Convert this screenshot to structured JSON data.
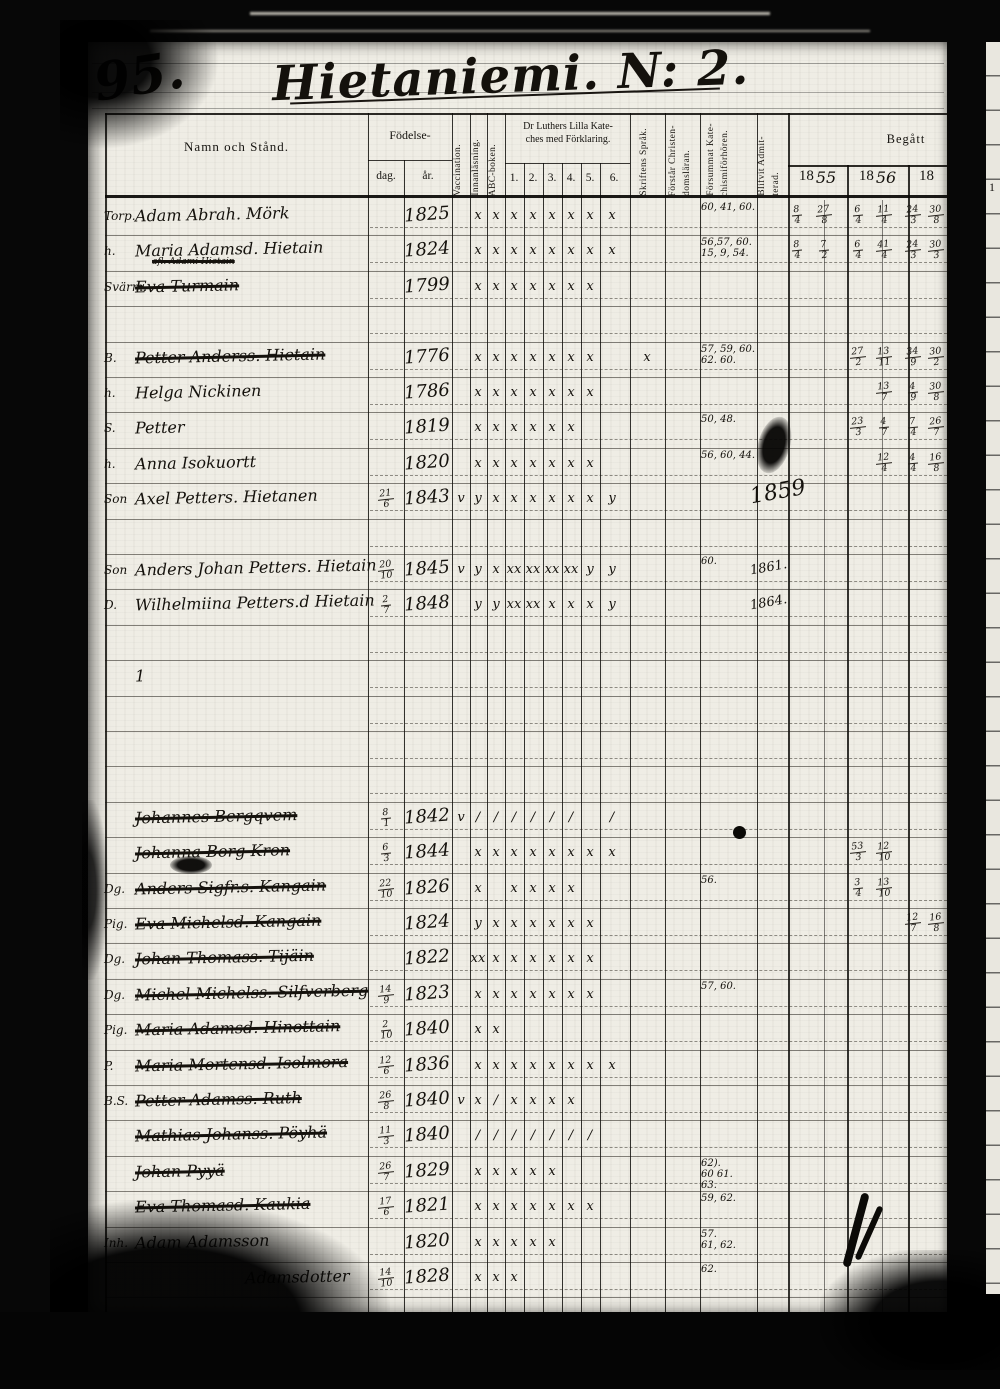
{
  "page": {
    "number": "95.",
    "title": "Hietaniemi. N: 2.",
    "edge_number": "1"
  },
  "header": {
    "name_label": "Namn och Stånd.",
    "birth": {
      "label": "Födelse-",
      "day": "dag.",
      "year": "år."
    },
    "katekes": {
      "line1": "Dr Luthers Lilla Kate-",
      "line2": "ches med Förklaring.",
      "cols": [
        "1.",
        "2.",
        "3.",
        "4.",
        "5.",
        "6."
      ]
    },
    "vertical_labels": [
      "Vaccination.",
      "Innanläsning.",
      "ABC-boken.",
      "Skriftens Språk.",
      "Förstår Christen-|domsläran.",
      "Försummat Kate-|chismiförhören.",
      "Blifvit Admit-|terad."
    ],
    "begatt_label": "Begått",
    "year_cells": [
      {
        "printed": "18",
        "written": "55"
      },
      {
        "printed": "18",
        "written": "56"
      },
      {
        "printed": "18",
        "written": ""
      }
    ]
  },
  "rows": [
    {
      "row": 0,
      "prefix": "Torp.",
      "name": "Adam Abrah. Mörk",
      "year": "1825",
      "marks": [
        "",
        "x",
        "x",
        "x",
        "x",
        "x",
        "x",
        "x",
        "x",
        ""
      ],
      "forsummat": "60, 41, 60.",
      "begatt": [
        "8/4",
        "27/8",
        "6/4",
        "11/4",
        "24/3",
        "30/8"
      ]
    },
    {
      "row": 1,
      "prefix": "h.",
      "name": "Maria Adamsd. Hietain",
      "note": "afl. Adami Hietain",
      "year": "1824",
      "marks": [
        "",
        "x",
        "x",
        "x",
        "x",
        "x",
        "x",
        "x",
        "x",
        ""
      ],
      "forsummat": "56,57, 60.\n15, 9, 54.",
      "begatt": [
        "8/4",
        "7/2",
        "6/4",
        "41/4",
        "24/3",
        "30/3"
      ]
    },
    {
      "row": 2,
      "prefix": "Svärm.",
      "name": "Eva Turmain",
      "struck": true,
      "year": "1799",
      "marks": [
        "",
        "x",
        "x",
        "x",
        "x",
        "x",
        "x",
        "x",
        "",
        ""
      ]
    },
    {
      "row": 4,
      "prefix": "B.",
      "name": "Petter Anderss. Hietain",
      "struck": true,
      "year": "1776",
      "marks": [
        "",
        "x",
        "x",
        "x",
        "x",
        "x",
        "x",
        "x",
        "",
        "x"
      ],
      "forsummat": "57, 59, 60.\n62. 60.",
      "begatt": [
        "",
        "",
        "27/2",
        "13/11",
        "34/9",
        "30/2"
      ]
    },
    {
      "row": 5,
      "prefix": "h.",
      "name": "Helga Nickinen",
      "year": "1786",
      "marks": [
        "",
        "x",
        "x",
        "x",
        "x",
        "x",
        "x",
        "x",
        "",
        ""
      ],
      "forsummat": "",
      "begatt": [
        "",
        "",
        "",
        "13/7",
        "4/9",
        "30/8"
      ]
    },
    {
      "row": 6,
      "prefix": "S.",
      "name": "Petter",
      "year": "1819",
      "marks": [
        "",
        "x",
        "x",
        "x",
        "x",
        "x",
        "x",
        "",
        "",
        ""
      ],
      "forsummat": "50, 48.",
      "begatt": [
        "",
        "",
        "23/3",
        "4/7",
        "7/4",
        "26/7"
      ]
    },
    {
      "row": 7,
      "prefix": "h.",
      "name": "Anna Isokuortt",
      "year": "1820",
      "marks": [
        "",
        "x",
        "x",
        "x",
        "x",
        "x",
        "x",
        "x",
        "",
        ""
      ],
      "forsummat": "56, 60, 44.",
      "begatt": [
        "",
        "",
        "",
        "12/4",
        "4/4",
        "16/8"
      ]
    },
    {
      "row": 8,
      "prefix": "Son",
      "name": "Axel Petters. Hietanen",
      "day": "21/6",
      "year": "1843",
      "marks": [
        "v",
        "y",
        "x",
        "x",
        "x",
        "x",
        "x",
        "x",
        "y",
        ""
      ],
      "admit": "1859"
    },
    {
      "row": 10,
      "prefix": "Son",
      "name": "Anders Johan Petters. Hietain",
      "day": "20/10",
      "year": "1845",
      "marks": [
        "v",
        "y",
        "x",
        "xx",
        "xx",
        "xx",
        "xx",
        "y",
        "y",
        ""
      ],
      "forsummat": "60.",
      "admit": "1861."
    },
    {
      "row": 11,
      "prefix": "D.",
      "name": "Wilhelmiina Petters.d Hietain",
      "day": "2/7",
      "year": "1848",
      "marks": [
        "",
        "y",
        "y",
        "xx",
        "xx",
        "x",
        "x",
        "x",
        "y",
        ""
      ],
      "admit": "1864."
    },
    {
      "row": 13,
      "name": "1"
    },
    {
      "row": 17,
      "name": "Johannes Bergqvem",
      "struck": true,
      "day": "8/1",
      "year": "1842",
      "marks": [
        "v",
        "/",
        "/",
        "/",
        "/",
        "/",
        "/",
        "",
        "/",
        ""
      ]
    },
    {
      "row": 18,
      "name": "Johanna Borg Kron",
      "struck": true,
      "day": "6/3",
      "year": "1844",
      "marks": [
        "",
        "x",
        "x",
        "x",
        "x",
        "x",
        "x",
        "x",
        "x",
        ""
      ],
      "begatt": [
        "",
        "",
        "53/3",
        "12/10",
        "",
        ""
      ]
    },
    {
      "row": 19,
      "prefix": "Dg.",
      "name": "Anders Sigfr.s. Kangain",
      "struck": true,
      "day": "22/10",
      "year": "1826",
      "marks": [
        "",
        "x",
        "",
        "x",
        "x",
        "x",
        "x",
        "",
        "",
        ""
      ],
      "forsummat": "56.",
      "begatt": [
        "",
        "",
        "3/4",
        "13/10",
        "",
        ""
      ]
    },
    {
      "row": 20,
      "prefix": "Pig.",
      "name": "Eva Michelsd. Kangain",
      "struck": true,
      "year": "1824",
      "marks": [
        "",
        "y",
        "x",
        "x",
        "x",
        "x",
        "x",
        "x",
        "",
        ""
      ],
      "begatt": [
        "",
        "",
        "",
        "",
        "12/7",
        "16/8"
      ]
    },
    {
      "row": 21,
      "prefix": "Dg.",
      "name": "Johan Thomass. Tijäin",
      "struck": true,
      "year": "1822",
      "marks": [
        "",
        "xx",
        "x",
        "x",
        "x",
        "x",
        "x",
        "x",
        "",
        ""
      ]
    },
    {
      "row": 22,
      "prefix": "Dg.",
      "name": "Michel Michelss. Silfverberg",
      "struck": true,
      "day": "14/9",
      "year": "1823",
      "marks": [
        "",
        "x",
        "x",
        "x",
        "x",
        "x",
        "x",
        "x",
        "",
        ""
      ],
      "forsummat": "57, 60."
    },
    {
      "row": 23,
      "prefix": "Pig.",
      "name": "Maria Adamsd. Hinottain",
      "struck": true,
      "day": "2/10",
      "year": "1840",
      "marks": [
        "",
        "x",
        "x",
        "",
        "",
        "",
        "",
        "",
        "",
        ""
      ]
    },
    {
      "row": 24,
      "prefix": "P.",
      "name": "Maria Mortensd. Isolmora",
      "struck": true,
      "day": "12/6",
      "year": "1836",
      "marks": [
        "",
        "x",
        "x",
        "x",
        "x",
        "x",
        "x",
        "x",
        "x",
        ""
      ]
    },
    {
      "row": 25,
      "prefix": "B.S.",
      "name": "Petter Adamss. Ruth",
      "struck": true,
      "day": "26/8",
      "year": "1840",
      "marks": [
        "v",
        "x",
        "/",
        "x",
        "x",
        "x",
        "x",
        "",
        "",
        ""
      ]
    },
    {
      "row": 26,
      "name": "Mathias Johanss. Pöyhä",
      "struck": true,
      "day": "11/3",
      "year": "1840",
      "marks": [
        "",
        "/",
        "/",
        "/",
        "/",
        "/",
        "/",
        "/",
        "",
        ""
      ]
    },
    {
      "row": 27,
      "name": "Johan Pyyä",
      "struck": true,
      "day": "26/7",
      "year": "1829",
      "marks": [
        "",
        "x",
        "x",
        "x",
        "x",
        "x",
        "",
        "",
        "",
        ""
      ],
      "forsummat": "62).\n60 61.\n63."
    },
    {
      "row": 28,
      "name": "Eva Thomasd. Kaukia",
      "struck": true,
      "day": "17/6",
      "year": "1821",
      "marks": [
        "",
        "x",
        "x",
        "x",
        "x",
        "x",
        "x",
        "x",
        "",
        ""
      ],
      "forsummat": "59, 62."
    },
    {
      "row": 29,
      "prefix": "Inh.",
      "name": "Adam Adamsson",
      "year": "1820",
      "marks": [
        "",
        "x",
        "x",
        "x",
        "x",
        "x",
        "",
        "",
        "",
        ""
      ],
      "forsummat": "57.\n61, 62."
    },
    {
      "row": 30,
      "name": "Adamsdotter",
      "indent": 1,
      "day": "14/10",
      "year": "1828",
      "marks": [
        "",
        "x",
        "x",
        "x",
        "",
        "",
        "",
        "",
        "",
        ""
      ],
      "forsummat": "62."
    }
  ]
}
